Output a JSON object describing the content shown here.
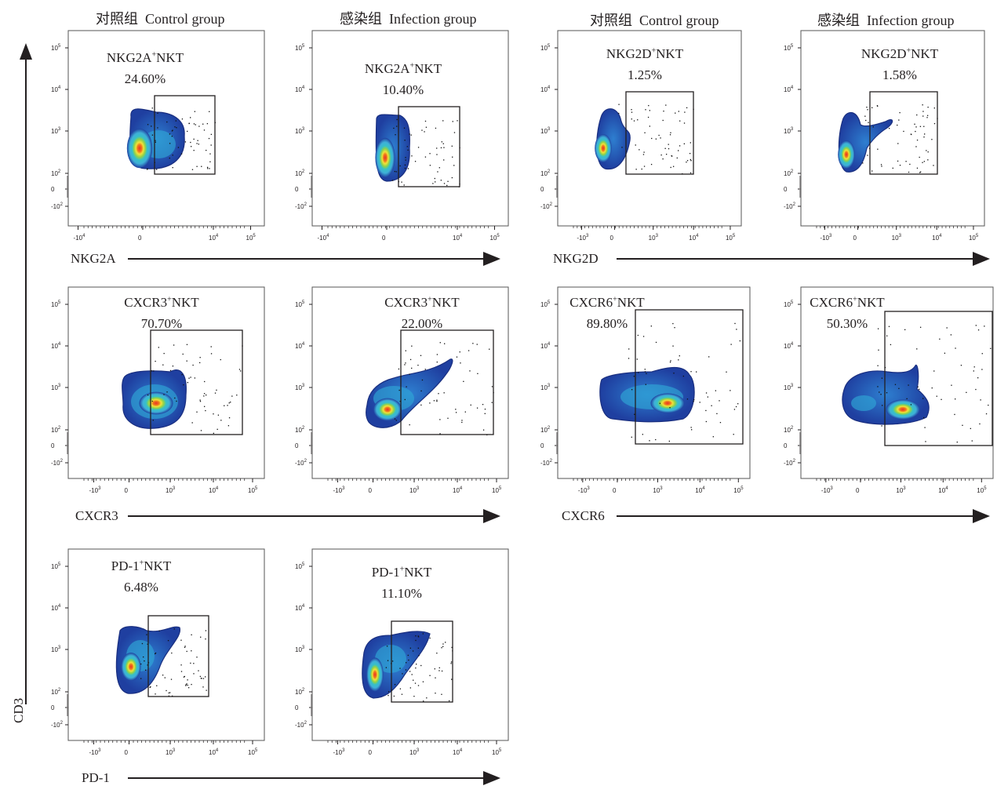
{
  "colors": {
    "gate": "#231f20",
    "arrow": "#231f20",
    "density_low": "#1f3fa0",
    "density_mid": "#3fb0d8",
    "density_high": "#e8302a"
  },
  "headers": [
    {
      "cn": "对照组",
      "en": "Control   group"
    },
    {
      "cn": "感染组",
      "en": "Infection   group"
    },
    {
      "cn": "对照组",
      "en": "Control   group"
    },
    {
      "cn": "感染组",
      "en": "Infection   group"
    }
  ],
  "y_axis_label": "CD3",
  "chart_data": [
    {
      "type": "scatter",
      "group": "Control group",
      "x_marker": "NKG2A",
      "y_marker": "CD3",
      "gate": "NKG2A",
      "gate_sup": "+",
      "gate_suffix": "NKT",
      "percent": "24.60%",
      "percent_value": 24.6
    },
    {
      "type": "scatter",
      "group": "Infection group",
      "x_marker": "NKG2A",
      "y_marker": "CD3",
      "gate": "NKG2A",
      "gate_sup": "+",
      "gate_suffix": "NKT",
      "percent": "10.40%",
      "percent_value": 10.4
    },
    {
      "type": "scatter",
      "group": "Control group",
      "x_marker": "NKG2D",
      "y_marker": "CD3",
      "gate": "NKG2D",
      "gate_sup": "+",
      "gate_suffix": "NKT",
      "percent": "1.25%",
      "percent_value": 1.25
    },
    {
      "type": "scatter",
      "group": "Infection group",
      "x_marker": "NKG2D",
      "y_marker": "CD3",
      "gate": "NKG2D",
      "gate_sup": "+",
      "gate_suffix": "NKT",
      "percent": "1.58%",
      "percent_value": 1.58
    },
    {
      "type": "scatter",
      "group": "Control group",
      "x_marker": "CXCR3",
      "y_marker": "CD3",
      "gate": "CXCR3",
      "gate_sup": "+",
      "gate_suffix": "NKT",
      "percent": "70.70%",
      "percent_value": 70.7
    },
    {
      "type": "scatter",
      "group": "Infection group",
      "x_marker": "CXCR3",
      "y_marker": "CD3",
      "gate": "CXCR3",
      "gate_sup": "+",
      "gate_suffix": "NKT",
      "percent": "22.00%",
      "percent_value": 22.0
    },
    {
      "type": "scatter",
      "group": "Control group",
      "x_marker": "CXCR6",
      "y_marker": "CD3",
      "gate": "CXCR6",
      "gate_sup": "+",
      "gate_suffix": "NKT",
      "percent": "89.80%",
      "percent_value": 89.8
    },
    {
      "type": "scatter",
      "group": "Infection group",
      "x_marker": "CXCR6",
      "y_marker": "CD3",
      "gate": "CXCR6",
      "gate_sup": "+",
      "gate_suffix": "NKT",
      "percent": "50.30%",
      "percent_value": 50.3
    },
    {
      "type": "scatter",
      "group": "Control group",
      "x_marker": "PD-1",
      "y_marker": "CD3",
      "gate": "PD-1",
      "gate_sup": "+",
      "gate_suffix": "NKT",
      "percent": "6.48%",
      "percent_value": 6.48
    },
    {
      "type": "scatter",
      "group": "Infection group",
      "x_marker": "PD-1",
      "y_marker": "CD3",
      "gate": "PD-1",
      "gate_sup": "+",
      "gate_suffix": "NKT",
      "percent": "11.10%",
      "percent_value": 11.1
    }
  ],
  "axis_labels": [
    "NKG2A",
    "NKG2D",
    "CXCR3",
    "CXCR6",
    "PD-1"
  ],
  "y_ticks": [
    "10",
    "10",
    "10",
    "10",
    "0",
    "-10"
  ],
  "y_tick_exps": [
    "5",
    "4",
    "3",
    "2",
    "",
    "2"
  ],
  "x_ticks": [
    "-10",
    "0",
    "10",
    "10",
    "10"
  ],
  "x_tick_exps": [
    "3",
    "",
    "3",
    "4",
    "5"
  ],
  "x_ticks_row1": [
    "-10",
    "0",
    "10",
    "10"
  ],
  "x_ticks_row1_exps": [
    "4",
    "",
    "4",
    "5"
  ]
}
